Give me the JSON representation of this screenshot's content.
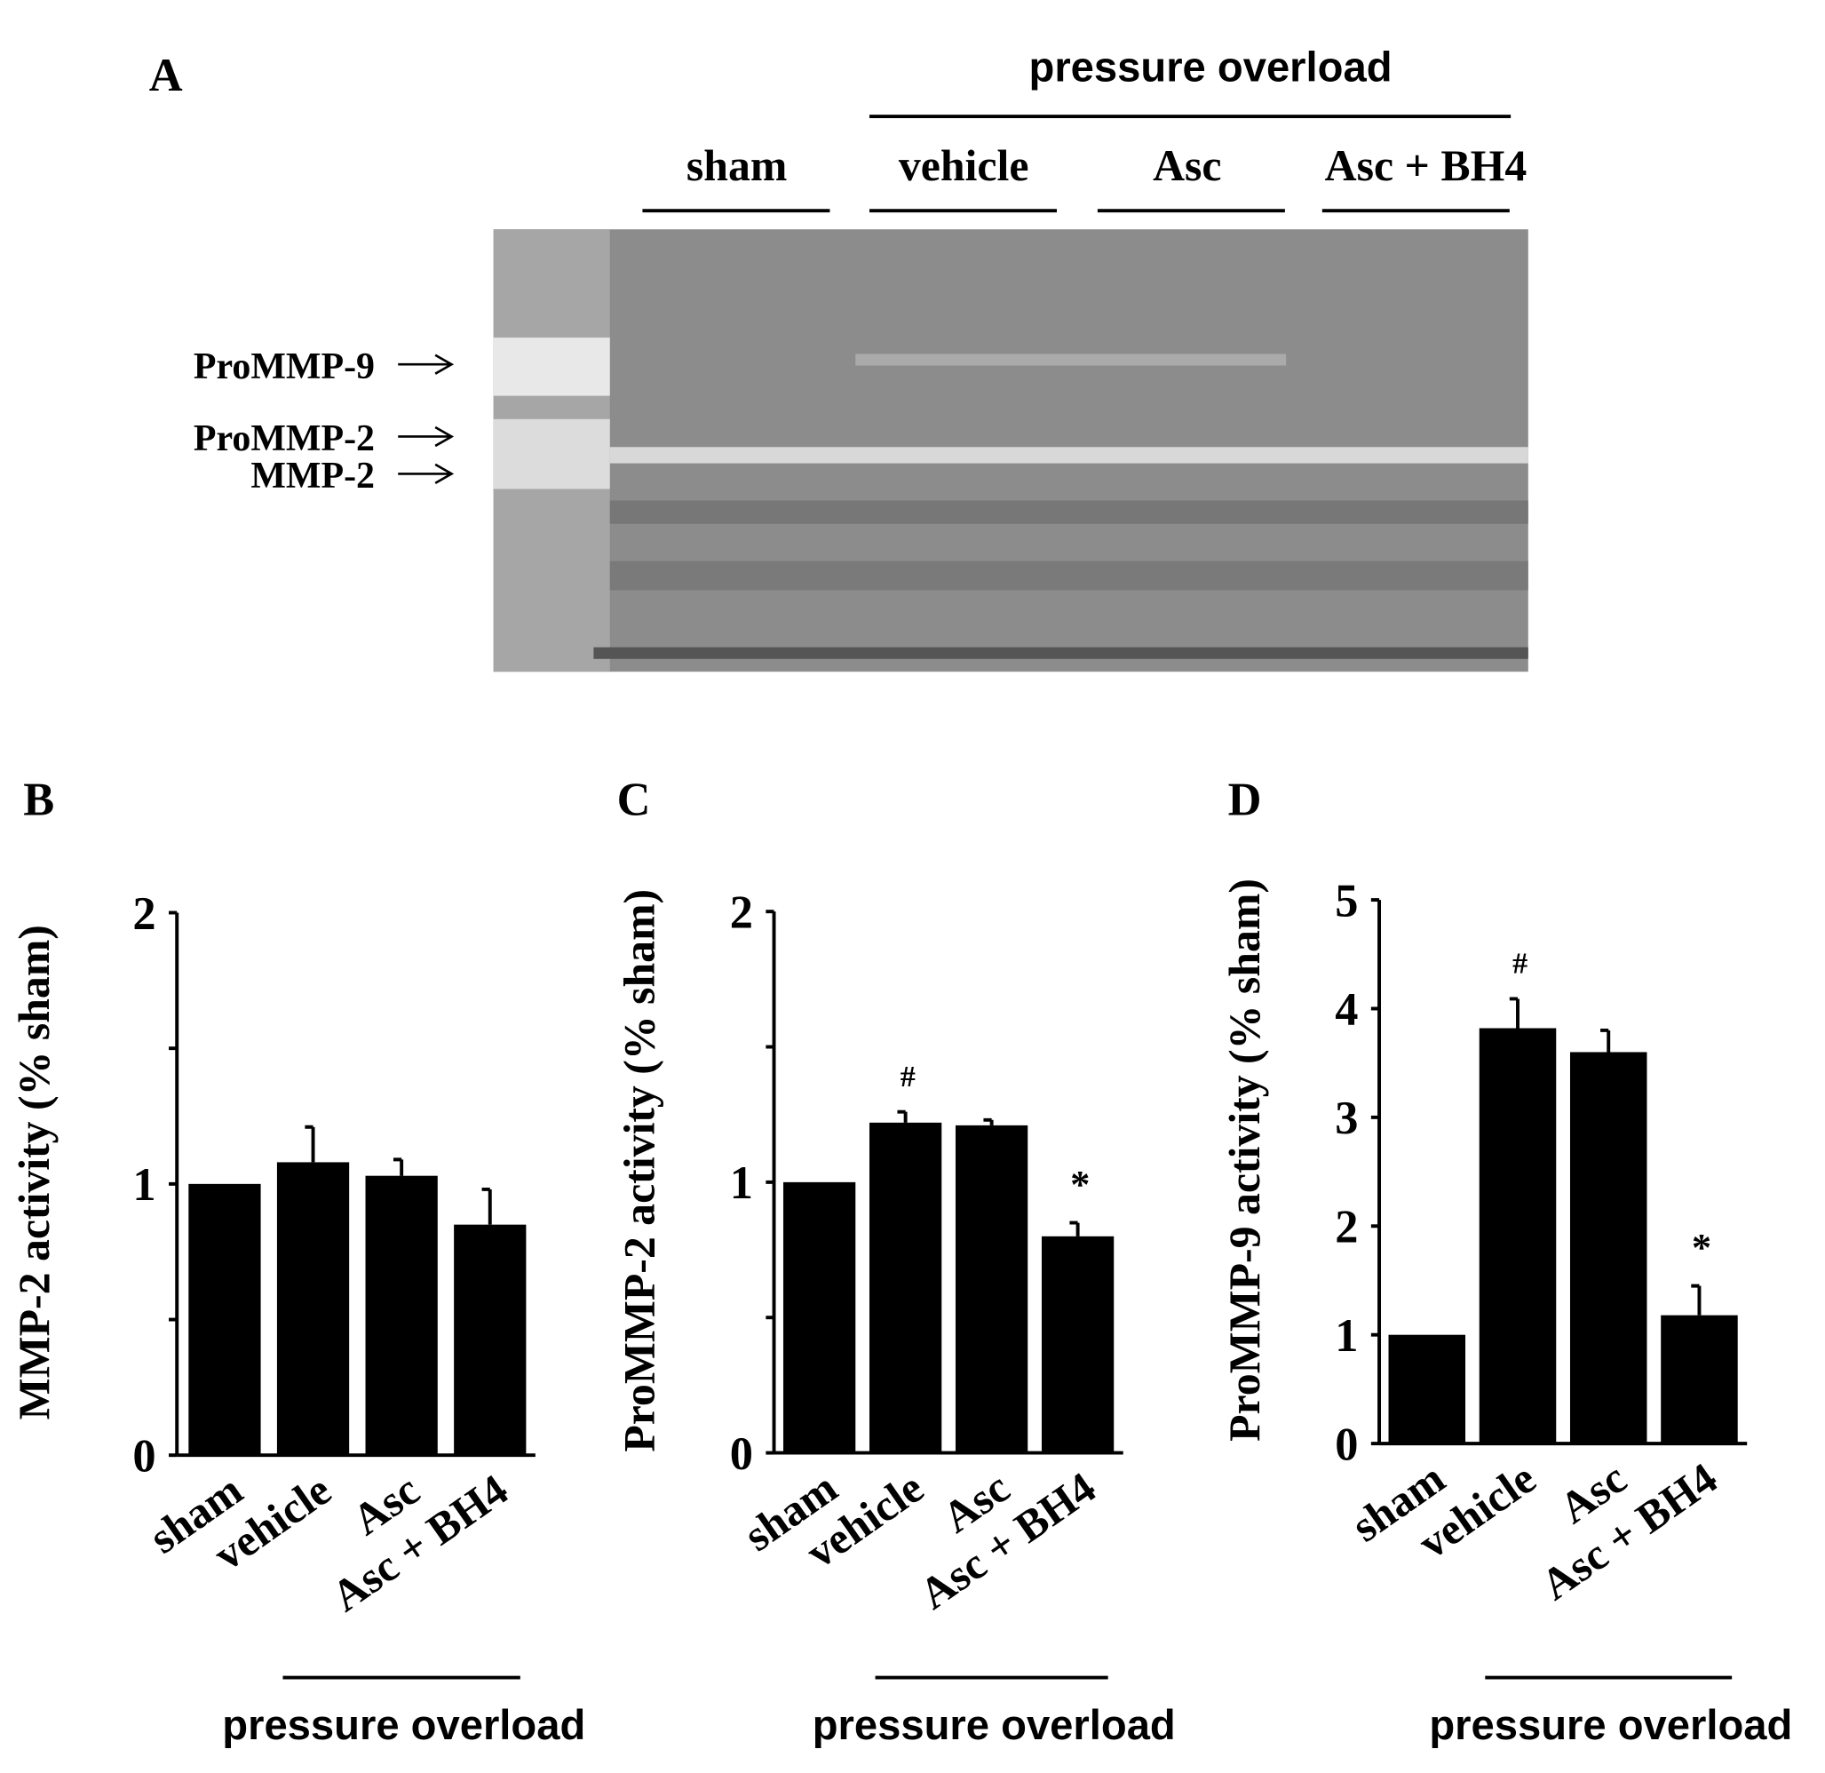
{
  "panel_a": {
    "letter": "A",
    "group_label": "pressure overload",
    "lanes": [
      "sham",
      "vehicle",
      "Asc",
      "Asc + BH4"
    ],
    "band_labels": [
      "ProMMP-9",
      "ProMMP-2",
      "MMP-2"
    ]
  },
  "chart_data": [
    {
      "type": "bar",
      "letter": "B",
      "y_label": "MMP-2 activity (% sham)",
      "categories": [
        "sham",
        "vehicle",
        "Asc",
        "Asc + BH4"
      ],
      "values": [
        1,
        1.08,
        1.03,
        0.85
      ],
      "errors": [
        null,
        0.13,
        0.06,
        0.13
      ],
      "annotations": [
        null,
        null,
        null,
        null
      ],
      "color": "#000000",
      "ylim": [
        0,
        2
      ],
      "yticks": [
        0,
        1,
        2
      ],
      "minor_yticks": [
        0.5,
        1.5
      ],
      "group_label": "pressure overload"
    },
    {
      "type": "bar",
      "letter": "C",
      "y_label": "ProMMP-2 activity (% sham)",
      "categories": [
        "sham",
        "vehicle",
        "Asc",
        "Asc + BH4"
      ],
      "values": [
        1,
        1.22,
        1.21,
        0.8
      ],
      "errors": [
        null,
        0.04,
        0.02,
        0.05
      ],
      "annotations": [
        null,
        "#",
        null,
        "*"
      ],
      "color": "#000000",
      "ylim": [
        0,
        2
      ],
      "yticks": [
        0,
        1,
        2
      ],
      "minor_yticks": [
        0.5,
        1.5
      ],
      "group_label": "pressure overload"
    },
    {
      "type": "bar",
      "letter": "D",
      "y_label": "ProMMP-9 activity (% sham)",
      "categories": [
        "sham",
        "vehicle",
        "Asc",
        "Asc + BH4"
      ],
      "values": [
        1,
        3.82,
        3.6,
        1.18
      ],
      "errors": [
        null,
        0.27,
        0.2,
        0.27
      ],
      "annotations": [
        null,
        "#",
        null,
        "*"
      ],
      "color": "#000000",
      "ylim": [
        0,
        5
      ],
      "yticks": [
        0,
        1,
        2,
        3,
        4,
        5
      ],
      "group_label": "pressure overload"
    }
  ]
}
